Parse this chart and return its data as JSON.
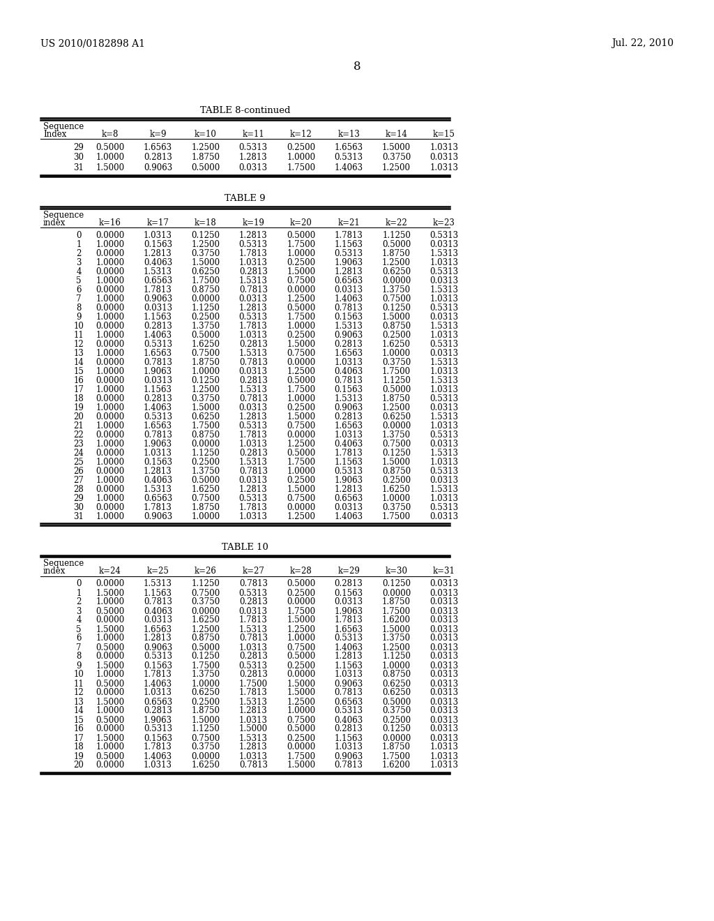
{
  "header_left": "US 2010/0182898 A1",
  "header_right": "Jul. 22, 2010",
  "page_number": "8",
  "background_color": "#ffffff",
  "text_color": "#000000",
  "table8_cont_title": "TABLE 8-continued",
  "table9_title": "TABLE 9",
  "table10_title": "TABLE 10",
  "table8_cont_data": [
    [
      29,
      0.5,
      1.6563,
      1.25,
      0.5313,
      0.25,
      1.6563,
      1.5,
      1.0313
    ],
    [
      30,
      1.0,
      0.2813,
      1.875,
      1.2813,
      1.0,
      0.5313,
      0.375,
      0.0313
    ],
    [
      31,
      1.5,
      0.9063,
      0.5,
      0.0313,
      1.75,
      1.4063,
      1.25,
      1.0313
    ]
  ],
  "table8_cont_col_labels": [
    "k=8",
    "k=9",
    "k=10",
    "k=11",
    "k=12",
    "k=13",
    "k=14",
    "k=15"
  ],
  "table8_cont_header_row1": "Sequence",
  "table8_cont_header_row2": "Index",
  "table9_col_labels": [
    "k=16",
    "k=17",
    "k=18",
    "k=19",
    "k=20",
    "k=21",
    "k=22",
    "k=23"
  ],
  "table9_header_row1": "Sequence",
  "table9_header_row2": "index",
  "table9_data": [
    [
      0,
      0.0,
      1.0313,
      0.125,
      1.2813,
      0.5,
      1.7813,
      1.125,
      0.5313
    ],
    [
      1,
      1.0,
      0.1563,
      1.25,
      0.5313,
      1.75,
      1.1563,
      0.5,
      0.0313
    ],
    [
      2,
      0.0,
      1.2813,
      0.375,
      1.7813,
      1.0,
      0.5313,
      1.875,
      1.5313
    ],
    [
      3,
      1.0,
      0.4063,
      1.5,
      1.0313,
      0.25,
      1.9063,
      1.25,
      1.0313
    ],
    [
      4,
      0.0,
      1.5313,
      0.625,
      0.2813,
      1.5,
      1.2813,
      0.625,
      0.5313
    ],
    [
      5,
      1.0,
      0.6563,
      1.75,
      1.5313,
      0.75,
      0.6563,
      0.0,
      0.0313
    ],
    [
      6,
      0.0,
      1.7813,
      0.875,
      0.7813,
      0.0,
      0.0313,
      1.375,
      1.5313
    ],
    [
      7,
      1.0,
      0.9063,
      0.0,
      0.0313,
      1.25,
      1.4063,
      0.75,
      1.0313
    ],
    [
      8,
      0.0,
      0.0313,
      1.125,
      1.2813,
      0.5,
      0.7813,
      0.125,
      0.5313
    ],
    [
      9,
      1.0,
      1.1563,
      0.25,
      0.5313,
      1.75,
      0.1563,
      1.5,
      0.0313
    ],
    [
      10,
      0.0,
      0.2813,
      1.375,
      1.7813,
      1.0,
      1.5313,
      0.875,
      1.5313
    ],
    [
      11,
      1.0,
      1.4063,
      0.5,
      1.0313,
      0.25,
      0.9063,
      0.25,
      1.0313
    ],
    [
      12,
      0.0,
      0.5313,
      1.625,
      0.2813,
      1.5,
      0.2813,
      1.625,
      0.5313
    ],
    [
      13,
      1.0,
      1.6563,
      0.75,
      1.5313,
      0.75,
      1.6563,
      1.0,
      0.0313
    ],
    [
      14,
      0.0,
      0.7813,
      1.875,
      0.7813,
      0.0,
      1.0313,
      0.375,
      1.5313
    ],
    [
      15,
      1.0,
      1.9063,
      1.0,
      0.0313,
      1.25,
      0.4063,
      1.75,
      1.0313
    ],
    [
      16,
      0.0,
      0.0313,
      0.125,
      0.2813,
      0.5,
      0.7813,
      1.125,
      1.5313
    ],
    [
      17,
      1.0,
      1.1563,
      1.25,
      1.5313,
      1.75,
      0.1563,
      0.5,
      1.0313
    ],
    [
      18,
      0.0,
      0.2813,
      0.375,
      0.7813,
      1.0,
      1.5313,
      1.875,
      0.5313
    ],
    [
      19,
      1.0,
      1.4063,
      1.5,
      0.0313,
      0.25,
      0.9063,
      1.25,
      0.0313
    ],
    [
      20,
      0.0,
      0.5313,
      0.625,
      1.2813,
      1.5,
      0.2813,
      0.625,
      1.5313
    ],
    [
      21,
      1.0,
      1.6563,
      1.75,
      0.5313,
      0.75,
      1.6563,
      0.0,
      1.0313
    ],
    [
      22,
      0.0,
      0.7813,
      0.875,
      1.7813,
      0.0,
      1.0313,
      1.375,
      0.5313
    ],
    [
      23,
      1.0,
      1.9063,
      0.0,
      1.0313,
      1.25,
      0.4063,
      0.75,
      0.0313
    ],
    [
      24,
      0.0,
      1.0313,
      1.125,
      0.2813,
      0.5,
      1.7813,
      0.125,
      1.5313
    ],
    [
      25,
      1.0,
      0.1563,
      0.25,
      1.5313,
      1.75,
      1.1563,
      1.5,
      1.0313
    ],
    [
      26,
      0.0,
      1.2813,
      1.375,
      0.7813,
      1.0,
      0.5313,
      0.875,
      0.5313
    ],
    [
      27,
      1.0,
      0.4063,
      0.5,
      0.0313,
      0.25,
      1.9063,
      0.25,
      0.0313
    ],
    [
      28,
      0.0,
      1.5313,
      1.625,
      1.2813,
      1.5,
      1.2813,
      1.625,
      1.5313
    ],
    [
      29,
      1.0,
      0.6563,
      0.75,
      0.5313,
      0.75,
      0.6563,
      1.0,
      1.0313
    ],
    [
      30,
      0.0,
      1.7813,
      1.875,
      1.7813,
      0.0,
      0.0313,
      0.375,
      0.5313
    ],
    [
      31,
      1.0,
      0.9063,
      1.0,
      1.0313,
      1.25,
      1.4063,
      1.75,
      0.0313
    ]
  ],
  "table10_col_labels": [
    "k=24",
    "k=25",
    "k=26",
    "k=27",
    "k=28",
    "k=29",
    "k=30",
    "k=31"
  ],
  "table10_header_row1": "Sequence",
  "table10_header_row2": "index",
  "table10_data": [
    [
      0,
      0.0,
      1.5313,
      1.125,
      0.7813,
      0.5,
      0.2813,
      0.125,
      0.0313
    ],
    [
      1,
      1.5,
      1.1563,
      0.75,
      0.5313,
      0.25,
      0.1563,
      0.0,
      0.0313
    ],
    [
      2,
      1.0,
      0.7813,
      0.375,
      0.2813,
      0.0,
      0.0313,
      1.875,
      0.0313
    ],
    [
      3,
      0.5,
      0.4063,
      0.0,
      0.0313,
      1.75,
      1.9063,
      1.75,
      0.0313
    ],
    [
      4,
      0.0,
      0.0313,
      1.625,
      1.7813,
      1.5,
      1.7813,
      1.62,
      0.0313
    ],
    [
      5,
      1.5,
      1.6563,
      1.25,
      1.5313,
      1.25,
      1.6563,
      1.5,
      0.0313
    ],
    [
      6,
      1.0,
      1.2813,
      0.875,
      0.7813,
      1.0,
      0.5313,
      1.375,
      0.0313
    ],
    [
      7,
      0.5,
      0.9063,
      0.5,
      1.0313,
      0.75,
      1.4063,
      1.25,
      0.0313
    ],
    [
      8,
      0.0,
      0.5313,
      0.125,
      0.2813,
      0.5,
      1.2813,
      1.125,
      0.0313
    ],
    [
      9,
      1.5,
      0.1563,
      1.75,
      0.5313,
      0.25,
      1.1563,
      1.0,
      0.0313
    ],
    [
      10,
      1.0,
      1.7813,
      1.375,
      0.2813,
      0.0,
      1.0313,
      0.875,
      0.0313
    ],
    [
      11,
      0.5,
      1.4063,
      1.0,
      1.75,
      1.5,
      0.9063,
      0.625,
      0.0313
    ],
    [
      12,
      0.0,
      1.0313,
      0.625,
      1.7813,
      1.5,
      0.7813,
      0.625,
      0.0313
    ],
    [
      13,
      1.5,
      0.6563,
      0.25,
      1.5313,
      1.25,
      0.6563,
      0.5,
      0.0313
    ],
    [
      14,
      1.0,
      0.2813,
      1.875,
      1.2813,
      1.0,
      0.5313,
      0.375,
      0.0313
    ],
    [
      15,
      0.5,
      1.9063,
      1.5,
      1.0313,
      0.75,
      0.4063,
      0.25,
      0.0313
    ],
    [
      16,
      0.0,
      0.5313,
      1.125,
      1.5,
      0.5,
      0.2813,
      0.125,
      0.0313
    ],
    [
      17,
      1.5,
      0.1563,
      0.75,
      1.5313,
      0.25,
      1.1563,
      0.0,
      0.0313
    ],
    [
      18,
      1.0,
      1.7813,
      0.375,
      1.2813,
      0.0,
      1.0313,
      1.875,
      1.0313
    ],
    [
      19,
      0.5,
      1.4063,
      0.0,
      1.0313,
      1.75,
      0.9063,
      1.75,
      1.0313
    ],
    [
      20,
      0.0,
      1.0313,
      1.625,
      0.7813,
      1.5,
      0.7813,
      1.62,
      1.0313
    ]
  ]
}
